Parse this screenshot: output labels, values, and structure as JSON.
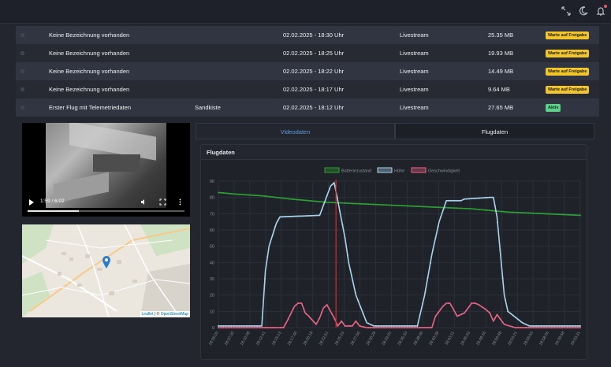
{
  "header": {
    "icons": [
      "expand-icon",
      "moon-icon",
      "bell-icon"
    ]
  },
  "table": {
    "rows": [
      {
        "description": "Keine Bezeichnung vorhanden",
        "location": "",
        "date": "02.02.2025 - 18:30 Uhr",
        "type": "Livestream",
        "size": "25.35 MB",
        "status": "Warte auf Freigabe",
        "status_kind": "pending"
      },
      {
        "description": "Keine Bezeichnung vorhanden",
        "location": "",
        "date": "02.02.2025 - 18:25 Uhr",
        "type": "Livestream",
        "size": "19.93 MB",
        "status": "Warte auf Freigabe",
        "status_kind": "pending"
      },
      {
        "description": "Keine Bezeichnung vorhanden",
        "location": "",
        "date": "02.02.2025 - 18:22 Uhr",
        "type": "Livestream",
        "size": "14.49 MB",
        "status": "Warte auf Freigabe",
        "status_kind": "pending"
      },
      {
        "description": "Keine Bezeichnung vorhanden",
        "location": "",
        "date": "02.02.2025 - 18:17 Uhr",
        "type": "Livestream",
        "size": "9.64 MB",
        "status": "Warte auf Freigabe",
        "status_kind": "pending"
      },
      {
        "description": "Erster Flug mit Telemetriedaten",
        "location": "Sandkiste",
        "date": "02.02.2025 - 18:12 Uhr",
        "type": "Livestream",
        "size": "27.65 MB",
        "status": "Aktiv",
        "status_kind": "active"
      }
    ]
  },
  "video": {
    "time": "1:59 / 6:02",
    "progress_fraction": 0.329
  },
  "map": {
    "attribution_leaflet": "Leaflet",
    "attribution_sep": " | © ",
    "attribution_osm": "OpenStreetMap"
  },
  "tabs": {
    "video": "Videodaten",
    "flight": "Flugdaten"
  },
  "card": {
    "title": "Flugdaten"
  },
  "colors": {
    "battery": "#2e9e34",
    "height": "#a9d3ec",
    "speed": "#e96484",
    "cursor": "#d52b2b"
  },
  "chart_data": {
    "type": "line",
    "title": "Flugdaten",
    "legend": [
      "Batteriezustand",
      "Höhe",
      "Geschwindigkeit"
    ],
    "legend_position": "top-center",
    "ylim": [
      0,
      90
    ],
    "yticks": [
      0,
      10,
      20,
      30,
      40,
      50,
      60,
      70,
      80,
      90
    ],
    "x": [
      "18:05:03",
      "18:05:34",
      "18:06:04",
      "18:06:35",
      "18:07:05",
      "18:07:36",
      "18:08:06",
      "18:08:37",
      "18:09:07",
      "18:09:38",
      "18:10:08",
      "18:10:39",
      "18:11:09",
      "18:11:40",
      "18:12:10",
      "18:12:41",
      "18:13:11",
      "18:13:42",
      "18:14:12",
      "18:14:43",
      "18:15:13",
      "18:15:44",
      "18:16:14",
      "18:16:45",
      "18:17:15",
      "18:17:46",
      "18:18:16",
      "18:18:47",
      "18:19:17",
      "18:19:48",
      "18:20:18",
      "18:20:49",
      "18:21:19",
      "18:21:50",
      "18:22:20",
      "18:22:51",
      "18:23:21",
      "18:23:52",
      "18:24:22",
      "18:24:53",
      "18:25:23",
      "18:25:54",
      "18:26:24",
      "18:26:55",
      "18:27:25",
      "18:27:56",
      "18:28:26",
      "18:28:57",
      "18:29:27",
      "18:29:58",
      "18:30:28",
      "18:30:59",
      "18:31:29",
      "18:32:00",
      "18:32:30",
      "18:33:01",
      "18:33:31",
      "18:34:02",
      "18:34:32",
      "18:35:03",
      "18:35:33",
      "18:36:04",
      "18:36:34",
      "18:37:05",
      "18:37:35",
      "18:38:06",
      "18:38:36",
      "18:39:07",
      "18:39:37",
      "18:40:08",
      "18:40:38",
      "18:41:09",
      "18:41:39",
      "18:42:10",
      "18:42:40",
      "18:43:11",
      "18:43:41",
      "18:44:12",
      "18:44:42",
      "18:45:13",
      "18:45:43",
      "18:46:14",
      "18:46:44",
      "18:47:15",
      "18:47:45",
      "18:48:16",
      "18:48:46",
      "18:49:17",
      "18:49:47",
      "18:50:18",
      "18:50:48",
      "18:51:19",
      "18:51:49",
      "18:52:20",
      "18:52:50",
      "18:53:21",
      "18:53:51",
      "18:54:22",
      "18:54:52",
      "18:55:23",
      "18:55:53",
      "18:56:24",
      "18:56:54",
      "18:57:25",
      "18:57:55",
      "18:58:26",
      "18:58:56",
      "18:59:27",
      "18:59:57",
      "19:00:28",
      "19:00:58",
      "19:01:29",
      "19:01:59",
      "19:02:30",
      "19:03:00",
      "19:03:31",
      "19:04:01",
      "19:04:32",
      "19:05:02",
      "19:05:33"
    ],
    "xtick_labels": [
      "18:05:03",
      "18:07:35",
      "18:10:08",
      "18:12:41",
      "18:15:13",
      "18:17:46",
      "18:20:18",
      "18:22:51",
      "18:25:23",
      "18:27:56",
      "18:30:28",
      "18:33:01",
      "18:35:33",
      "18:38:06",
      "18:40:38",
      "18:43:11",
      "18:45:43",
      "18:48:16",
      "18:50:48",
      "18:53:21",
      "18:55:53",
      "18:58:26",
      "19:00:58",
      "19:03:31"
    ],
    "cursor_fraction": 0.325,
    "series": [
      {
        "name": "Batteriezustand",
        "points": [
          [
            0,
            83
          ],
          [
            0.05,
            82
          ],
          [
            0.12,
            81
          ],
          [
            0.2,
            79
          ],
          [
            0.3,
            77
          ],
          [
            0.4,
            76
          ],
          [
            0.5,
            75
          ],
          [
            0.6,
            74
          ],
          [
            0.7,
            73
          ],
          [
            0.8,
            71
          ],
          [
            0.9,
            70
          ],
          [
            1,
            69
          ]
        ]
      },
      {
        "name": "Höhe",
        "points": [
          [
            0,
            1
          ],
          [
            0.08,
            1
          ],
          [
            0.12,
            1
          ],
          [
            0.13,
            35
          ],
          [
            0.14,
            50
          ],
          [
            0.16,
            64
          ],
          [
            0.17,
            68
          ],
          [
            0.28,
            69
          ],
          [
            0.31,
            87
          ],
          [
            0.32,
            89
          ],
          [
            0.33,
            78
          ],
          [
            0.35,
            55
          ],
          [
            0.36,
            40
          ],
          [
            0.38,
            20
          ],
          [
            0.41,
            3
          ],
          [
            0.43,
            1
          ],
          [
            0.55,
            1
          ],
          [
            0.57,
            20
          ],
          [
            0.59,
            45
          ],
          [
            0.61,
            65
          ],
          [
            0.63,
            78
          ],
          [
            0.67,
            78
          ],
          [
            0.68,
            79
          ],
          [
            0.75,
            80
          ],
          [
            0.76,
            80
          ],
          [
            0.77,
            68
          ],
          [
            0.79,
            20
          ],
          [
            0.8,
            10
          ],
          [
            0.84,
            3
          ],
          [
            0.86,
            1
          ],
          [
            1,
            1
          ]
        ]
      },
      {
        "name": "Geschwindigkeit",
        "points": [
          [
            0,
            0
          ],
          [
            0.18,
            0
          ],
          [
            0.19,
            4
          ],
          [
            0.21,
            13
          ],
          [
            0.22,
            15
          ],
          [
            0.23,
            15
          ],
          [
            0.24,
            9
          ],
          [
            0.25,
            7
          ],
          [
            0.27,
            2
          ],
          [
            0.28,
            6
          ],
          [
            0.29,
            12
          ],
          [
            0.3,
            14
          ],
          [
            0.31,
            10
          ],
          [
            0.32,
            6
          ],
          [
            0.33,
            1
          ],
          [
            0.34,
            4
          ],
          [
            0.35,
            1
          ],
          [
            0.37,
            1
          ],
          [
            0.38,
            4
          ],
          [
            0.39,
            1
          ],
          [
            0.41,
            0
          ],
          [
            0.59,
            0
          ],
          [
            0.6,
            7
          ],
          [
            0.62,
            13
          ],
          [
            0.63,
            15
          ],
          [
            0.64,
            15
          ],
          [
            0.65,
            11
          ],
          [
            0.66,
            7
          ],
          [
            0.68,
            9
          ],
          [
            0.7,
            15
          ],
          [
            0.71,
            15
          ],
          [
            0.72,
            14
          ],
          [
            0.74,
            11
          ],
          [
            0.75,
            9
          ],
          [
            0.76,
            4
          ],
          [
            0.77,
            8
          ],
          [
            0.79,
            2
          ],
          [
            0.82,
            0
          ],
          [
            1,
            0
          ]
        ]
      }
    ]
  }
}
